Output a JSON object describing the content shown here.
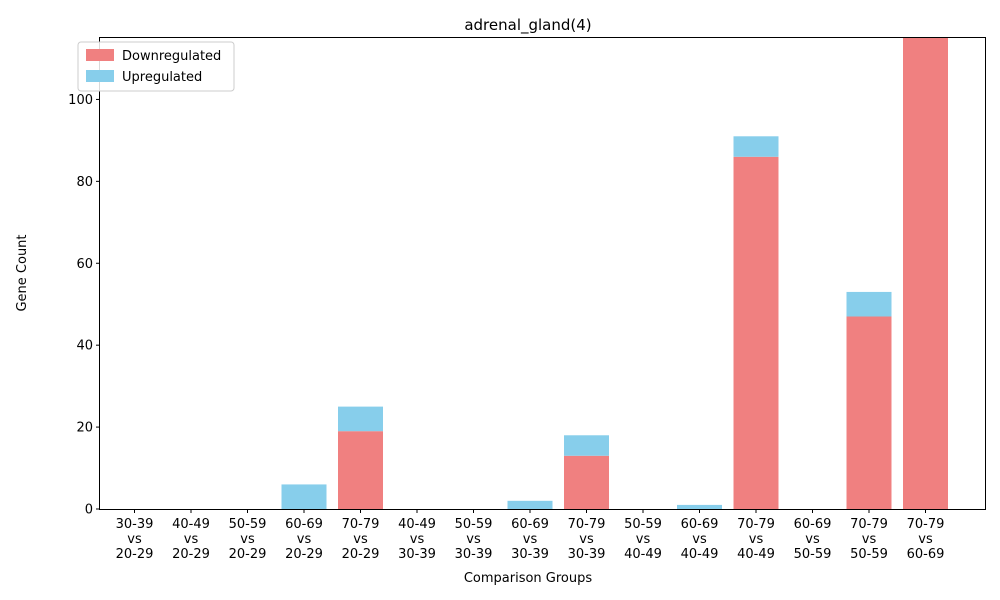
{
  "chart_data": {
    "type": "bar",
    "stacked": true,
    "title": "adrenal_gland(4)",
    "xlabel": "Comparison Groups",
    "ylabel": "Gene Count",
    "ylim": [
      0,
      115
    ],
    "yticks": [
      0,
      20,
      40,
      60,
      80,
      100
    ],
    "grid": false,
    "legend_position": "top-left",
    "categories": [
      [
        "30-39",
        "vs",
        "20-29"
      ],
      [
        "40-49",
        "vs",
        "20-29"
      ],
      [
        "50-59",
        "vs",
        "20-29"
      ],
      [
        "60-69",
        "vs",
        "20-29"
      ],
      [
        "70-79",
        "vs",
        "20-29"
      ],
      [
        "40-49",
        "vs",
        "30-39"
      ],
      [
        "50-59",
        "vs",
        "30-39"
      ],
      [
        "60-69",
        "vs",
        "30-39"
      ],
      [
        "70-79",
        "vs",
        "30-39"
      ],
      [
        "50-59",
        "vs",
        "40-49"
      ],
      [
        "60-69",
        "vs",
        "40-49"
      ],
      [
        "70-79",
        "vs",
        "40-49"
      ],
      [
        "60-69",
        "vs",
        "50-59"
      ],
      [
        "70-79",
        "vs",
        "50-59"
      ],
      [
        "70-79",
        "vs",
        "60-69"
      ]
    ],
    "series": [
      {
        "name": "Downregulated",
        "color": "#f08080",
        "values": [
          0,
          0,
          0,
          0,
          19,
          0,
          0,
          0,
          13,
          0,
          0,
          86,
          0,
          47,
          115
        ]
      },
      {
        "name": "Upregulated",
        "color": "#87ceeb",
        "values": [
          0,
          0,
          0,
          6,
          6,
          0,
          0,
          2,
          5,
          0,
          1,
          5,
          0,
          6,
          0
        ]
      }
    ]
  }
}
